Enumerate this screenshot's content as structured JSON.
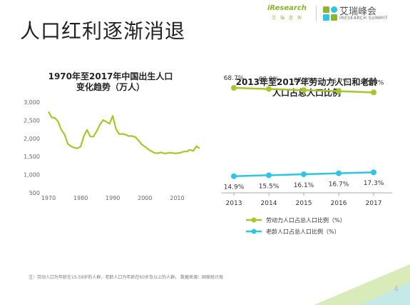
{
  "slide": {
    "title": "人口红利逐渐消退",
    "page_number": "4",
    "footnote": "注：劳动人口为年龄在15-59岁的人群，老龄人口为年龄在60岁及以上的人群。 数据来源：国家统计局"
  },
  "logo": {
    "iresearch_word": "iResearch",
    "iresearch_sub": "艾 瑞 咨 询",
    "summit_name": "艾瑞峰会",
    "summit_en": "IRESEARCH SUMMIT"
  },
  "colors": {
    "line_chart": "#a3c72c",
    "labor_series": "#a3c72c",
    "elderly_series": "#2fc3e6",
    "axis": "#aaaaaa",
    "deco_green": "#c7e29a",
    "deco_cyan": "#bfe8f2"
  },
  "chart_data": [
    {
      "type": "line",
      "title_lines": [
        "1970年至2017年中国出生人口",
        "变化趋势（万人）"
      ],
      "xlabel": "",
      "ylabel": "",
      "x_ticks": [
        "1970",
        "1980",
        "1990",
        "2000",
        "2010"
      ],
      "y_ticks": [
        "500",
        "1,000",
        "1,500",
        "2,000",
        "2,500",
        "3,000"
      ],
      "xlim": [
        1970,
        2017
      ],
      "ylim": [
        500,
        3000
      ],
      "grid": false,
      "x": [
        1970,
        1971,
        1972,
        1973,
        1974,
        1975,
        1976,
        1977,
        1978,
        1979,
        1980,
        1981,
        1982,
        1983,
        1984,
        1985,
        1986,
        1987,
        1988,
        1989,
        1990,
        1991,
        1992,
        1993,
        1994,
        1995,
        1996,
        1997,
        1998,
        1999,
        2000,
        2001,
        2002,
        2003,
        2004,
        2005,
        2006,
        2007,
        2008,
        2009,
        2010,
        2011,
        2012,
        2013,
        2014,
        2015,
        2016,
        2017
      ],
      "y": [
        2736,
        2578,
        2566,
        2463,
        2235,
        2109,
        1853,
        1786,
        1745,
        1727,
        1776,
        2064,
        2237,
        2052,
        2050,
        2202,
        2384,
        2508,
        2457,
        2407,
        2621,
        2258,
        2119,
        2126,
        2104,
        2063,
        2067,
        2038,
        1942,
        1834,
        1771,
        1702,
        1647,
        1599,
        1593,
        1617,
        1584,
        1594,
        1608,
        1591,
        1592,
        1604,
        1635,
        1640,
        1687,
        1655,
        1786,
        1723
      ]
    },
    {
      "type": "line",
      "title_lines": [
        "2013年至2017年劳动力人口和老龄",
        "人口占总人口比例"
      ],
      "xlabel": "",
      "ylabel": "",
      "categories": [
        "2013",
        "2014",
        "2015",
        "2016",
        "2017"
      ],
      "ylim": [
        0,
        80
      ],
      "grid": false,
      "legend_position": "bottom",
      "series": [
        {
          "name": "劳动力人口占总人口比例（%）",
          "values": [
            68.7,
            68.0,
            67.3,
            66.7,
            65.9
          ],
          "labels": [
            "68.7%",
            "68.0%",
            "67.3%",
            "66.7%",
            "65.9%"
          ],
          "color": "#a3c72c"
        },
        {
          "name": "老龄人口占总人口比例（%）",
          "values": [
            14.9,
            15.5,
            16.1,
            16.7,
            17.3
          ],
          "labels": [
            "14.9%",
            "15.5%",
            "16.1%",
            "16.7%",
            "17.3%"
          ],
          "color": "#2fc3e6"
        }
      ]
    }
  ]
}
